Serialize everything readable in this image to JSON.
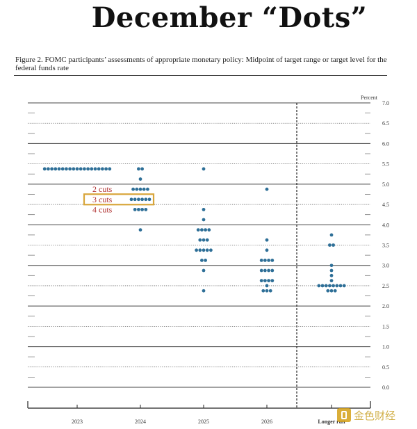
{
  "headline": "December “Dots”",
  "figure_caption": "Figure 2.  FOMC participants’ assessments of appropriate monetary policy:  Midpoint of target range or target level for the federal funds rate",
  "watermark_text": "金色财经",
  "annotations": {
    "cuts_2": "2 cuts",
    "cuts_3": "3 cuts",
    "cuts_4": "4 cuts",
    "label_color": "#b0302f",
    "highlight_color": "#d8a53a"
  },
  "chart_data": {
    "type": "scatter",
    "title": "",
    "ylabel": "Percent",
    "xlabel": "",
    "ylim": [
      0,
      7
    ],
    "grid": true,
    "yticks": [
      "0.0",
      "0.5",
      "1.0",
      "1.5",
      "2.0",
      "2.5",
      "3.0",
      "3.5",
      "4.0",
      "4.5",
      "5.0",
      "5.5",
      "6.0",
      "6.5",
      "7.0"
    ],
    "categories": [
      "2023",
      "2024",
      "2025",
      "2026",
      "Longer run"
    ],
    "dot_color": "#2e6f97",
    "series": [
      {
        "category": "2023",
        "points": [
          {
            "y": 5.375,
            "count": 19
          }
        ]
      },
      {
        "category": "2024",
        "points": [
          {
            "y": 5.375,
            "count": 2
          },
          {
            "y": 5.125,
            "count": 1
          },
          {
            "y": 4.875,
            "count": 5
          },
          {
            "y": 4.625,
            "count": 6
          },
          {
            "y": 4.375,
            "count": 4
          },
          {
            "y": 3.875,
            "count": 1
          }
        ]
      },
      {
        "category": "2025",
        "points": [
          {
            "y": 5.375,
            "count": 1
          },
          {
            "y": 4.375,
            "count": 1
          },
          {
            "y": 4.125,
            "count": 1
          },
          {
            "y": 3.875,
            "count": 4
          },
          {
            "y": 3.625,
            "count": 3
          },
          {
            "y": 3.375,
            "count": 5
          },
          {
            "y": 3.125,
            "count": 2
          },
          {
            "y": 2.875,
            "count": 1
          },
          {
            "y": 2.375,
            "count": 1
          }
        ]
      },
      {
        "category": "2026",
        "points": [
          {
            "y": 4.875,
            "count": 1
          },
          {
            "y": 3.625,
            "count": 1
          },
          {
            "y": 3.375,
            "count": 1
          },
          {
            "y": 3.125,
            "count": 4
          },
          {
            "y": 2.875,
            "count": 4
          },
          {
            "y": 2.625,
            "count": 4
          },
          {
            "y": 2.5,
            "count": 1
          },
          {
            "y": 2.375,
            "count": 3
          }
        ]
      },
      {
        "category": "Longer run",
        "points": [
          {
            "y": 3.75,
            "count": 1
          },
          {
            "y": 3.5,
            "count": 2
          },
          {
            "y": 3.0,
            "count": 1
          },
          {
            "y": 2.875,
            "count": 1
          },
          {
            "y": 2.75,
            "count": 1
          },
          {
            "y": 2.625,
            "count": 1
          },
          {
            "y": 2.5,
            "count": 8
          },
          {
            "y": 2.375,
            "count": 3
          }
        ]
      }
    ]
  }
}
